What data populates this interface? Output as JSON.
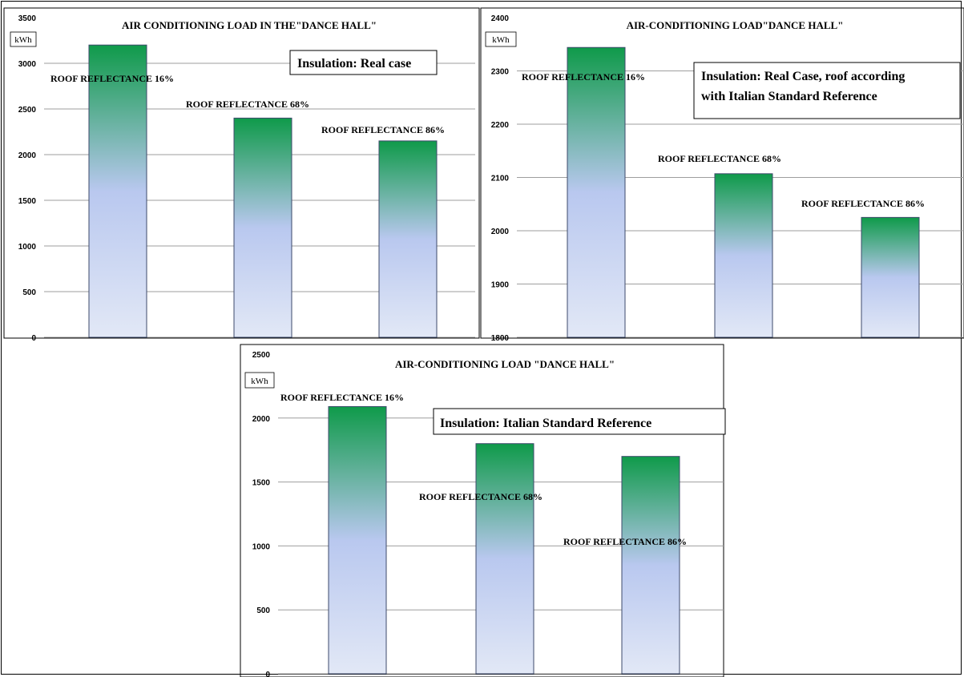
{
  "chart_data": [
    {
      "type": "bar",
      "title": "AIR CONDITIONING  LOAD IN THE\"DANCE HALL\"",
      "unit_label": "kWh",
      "annotation": "Insulation: Real case",
      "categories": [
        "ROOF REFLECTANCE 16%",
        "ROOF REFLECTANCE 68%",
        "ROOF REFLECTANCE 86%"
      ],
      "values": [
        3200,
        2400,
        2150
      ],
      "ylim": [
        0,
        3500
      ],
      "yticks": [
        "0",
        "500",
        "1000",
        "1500",
        "2000",
        "2500",
        "3000",
        "3500"
      ],
      "grid": true,
      "colors": {
        "top": "#0f9a4a",
        "bottom": "#dfe6f6",
        "mid": "#b9c8ef"
      }
    },
    {
      "type": "bar",
      "title": "AIR-CONDITIONING  LOAD\"DANCE HALL\"",
      "unit_label": "kWh",
      "annotation": [
        "Insulation: Real Case, roof according",
        "with Italian Standard Reference"
      ],
      "categories": [
        "ROOF REFLECTANCE 16%",
        "ROOF REFLECTANCE 68%",
        "ROOF REFLECTANCE 86%"
      ],
      "values": [
        2344,
        2107,
        2025
      ],
      "ylim": [
        1800,
        2400
      ],
      "yticks": [
        "1800",
        "1900",
        "2000",
        "2100",
        "2200",
        "2300",
        "2400"
      ],
      "grid": true,
      "colors": {
        "top": "#0f9a4a",
        "bottom": "#dfe6f6",
        "mid": "#b9c8ef"
      }
    },
    {
      "type": "bar",
      "title": "AIR-CONDITIONING  LOAD  \"DANCE HALL\"",
      "unit_label": "kWh",
      "annotation": "Insulation: Italian Standard Reference",
      "categories": [
        "ROOF REFLECTANCE 16%",
        "ROOF REFLECTANCE 68%",
        "ROOF REFLECTANCE 86%"
      ],
      "values": [
        2090,
        1800,
        1700
      ],
      "ylim": [
        0,
        2500
      ],
      "yticks": [
        "0",
        "500",
        "1000",
        "1500",
        "2000",
        "2500"
      ],
      "grid": true,
      "colors": {
        "top": "#0f9a4a",
        "bottom": "#dfe6f6",
        "mid": "#b9c8ef"
      }
    }
  ]
}
